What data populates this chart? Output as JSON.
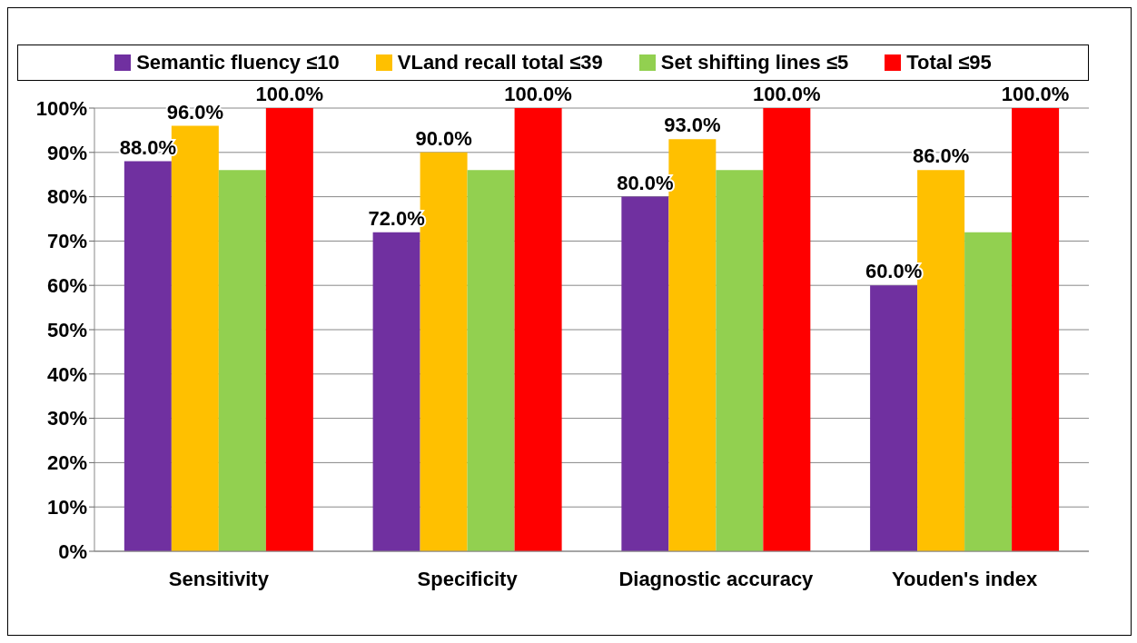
{
  "chart_data": {
    "type": "bar",
    "categories": [
      "Sensitivity",
      "Specificity",
      "Diagnostic accuracy",
      "Youden's index"
    ],
    "series": [
      {
        "name": "Semantic fluency ≤10",
        "color": "#7030a0",
        "values": [
          88,
          72,
          80,
          60
        ],
        "value_labels": [
          "88.0%",
          "72.0%",
          "80.0%",
          "60.0%"
        ]
      },
      {
        "name": "VLand recall total ≤39",
        "color": "#ffc000",
        "values": [
          96,
          90,
          93,
          86
        ],
        "value_labels": [
          "96.0%",
          "90.0%",
          "93.0%",
          "86.0%"
        ]
      },
      {
        "name": "Set shifting lines ≤5",
        "color": "#92d050",
        "values": [
          86,
          86,
          86,
          72
        ]
      },
      {
        "name": "Total ≤95",
        "color": "#ff0000",
        "values": [
          100,
          100,
          100,
          100
        ],
        "value_labels": [
          "100.0%",
          "100.0%",
          "100.0%",
          "100.0%"
        ]
      }
    ],
    "ylim": [
      0,
      100
    ],
    "yticks": [
      {
        "value": 0,
        "label": "0%"
      },
      {
        "value": 10,
        "label": "10%"
      },
      {
        "value": 20,
        "label": "20%"
      },
      {
        "value": 30,
        "label": "30%"
      },
      {
        "value": 40,
        "label": "40%"
      },
      {
        "value": 50,
        "label": "50%"
      },
      {
        "value": 60,
        "label": "60%"
      },
      {
        "value": 70,
        "label": "70%"
      },
      {
        "value": 80,
        "label": "80%"
      },
      {
        "value": 90,
        "label": "90%"
      },
      {
        "value": 100,
        "label": "100%"
      }
    ],
    "grid": "y",
    "legend": "top"
  }
}
